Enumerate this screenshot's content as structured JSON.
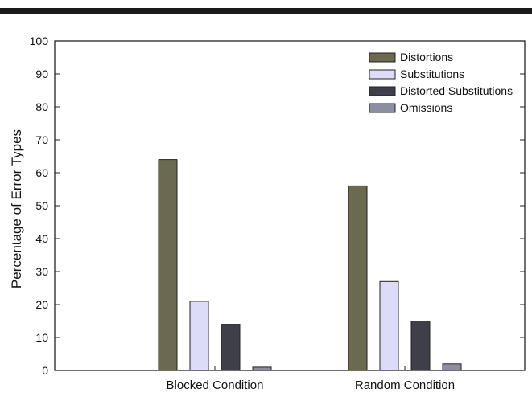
{
  "chart_data": {
    "type": "bar",
    "title": "",
    "xlabel": "",
    "ylabel": "Percentage of Error Types",
    "ylim": [
      0,
      100
    ],
    "yticks": [
      0,
      10,
      20,
      30,
      40,
      50,
      60,
      70,
      80,
      90,
      100
    ],
    "categories": [
      "Blocked Condition",
      "Random Condition"
    ],
    "series": [
      {
        "name": "Distortions",
        "values": [
          64,
          56
        ],
        "color": "#6b6a4f"
      },
      {
        "name": "Substitutions",
        "values": [
          21,
          27
        ],
        "color": "#dcdcf8"
      },
      {
        "name": "Distorted Substitutions",
        "values": [
          14,
          15
        ],
        "color": "#3f3f4a"
      },
      {
        "name": "Omissions",
        "values": [
          1,
          2
        ],
        "color": "#8e8ea2"
      }
    ],
    "legend_position": "top-right",
    "grid": false
  }
}
